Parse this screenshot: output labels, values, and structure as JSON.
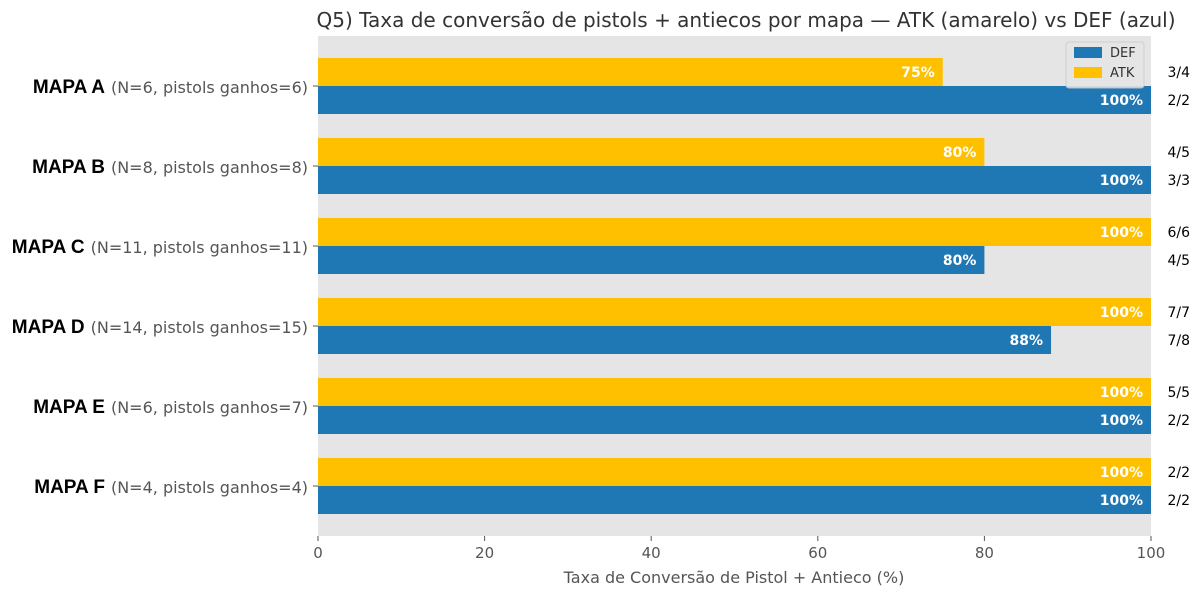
{
  "chart_data": {
    "type": "bar",
    "orientation": "horizontal",
    "title": "Q5) Taxa de conversão de pistols + antiecos por mapa — ATK (amarelo) vs DEF (azul)",
    "xlabel": "Taxa de Conversão de Pistol + Antieco (%)",
    "ylabel": "",
    "xlim": [
      0,
      100
    ],
    "xticks": [
      "0",
      "20",
      "40",
      "60",
      "80",
      "100"
    ],
    "grid": false,
    "legend_position": "top-right",
    "categories": [
      {
        "name": "MAPA A",
        "info": "(N=6, pistols ganhos=6)"
      },
      {
        "name": "MAPA B",
        "info": "(N=8, pistols ganhos=8)"
      },
      {
        "name": "MAPA C",
        "info": "(N=11, pistols ganhos=11)"
      },
      {
        "name": "MAPA D",
        "info": "(N=14, pistols ganhos=15)"
      },
      {
        "name": "MAPA E",
        "info": "(N=6, pistols ganhos=7)"
      },
      {
        "name": "MAPA F",
        "info": "(N=4, pistols ganhos=4)"
      }
    ],
    "series": [
      {
        "name": "ATK",
        "color": "#FFC000",
        "values": [
          75,
          80,
          100,
          100,
          100,
          100
        ],
        "labels": [
          "75%",
          "80%",
          "100%",
          "100%",
          "100%",
          "100%"
        ],
        "counts": [
          "3/4",
          "4/5",
          "6/6",
          "7/7",
          "5/5",
          "2/2"
        ]
      },
      {
        "name": "DEF",
        "color": "#1F77B4",
        "values": [
          100,
          100,
          80,
          88,
          100,
          100
        ],
        "labels": [
          "100%",
          "100%",
          "80%",
          "88%",
          "100%",
          "100%"
        ],
        "counts": [
          "2/2",
          "3/3",
          "4/5",
          "7/8",
          "2/2",
          "2/2"
        ]
      }
    ],
    "legend": [
      {
        "label": "DEF",
        "color": "#1F77B4"
      },
      {
        "label": "ATK",
        "color": "#FFC000"
      }
    ],
    "plot_background": "#E5E5E5"
  }
}
